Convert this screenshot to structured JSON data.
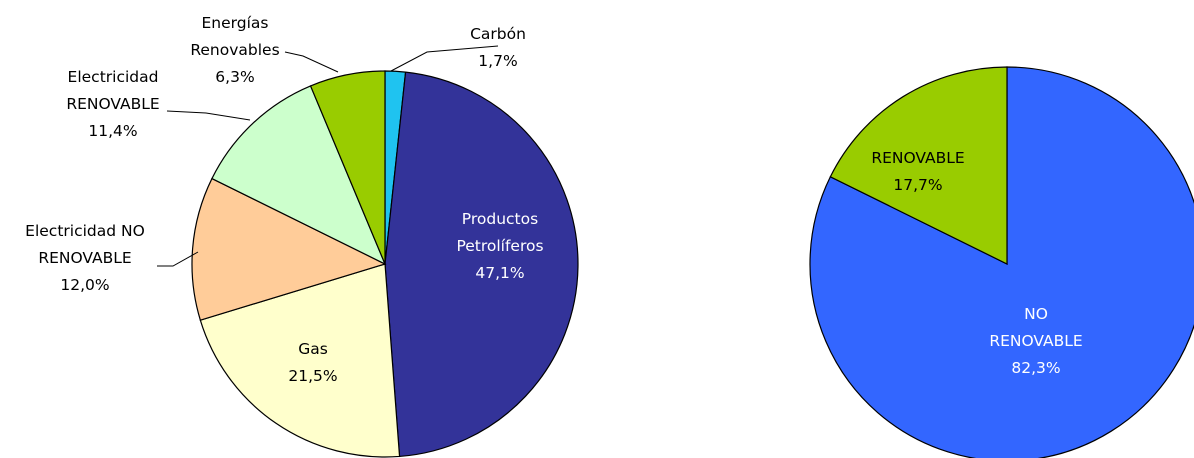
{
  "chart_data": [
    {
      "type": "pie",
      "slices": [
        {
          "name": "Carbón",
          "label_lines": [
            "Carbón",
            "1,7%"
          ],
          "value": 1.7,
          "color": "#1fc3f0"
        },
        {
          "name": "Productos Petrolíferos",
          "label_lines": [
            "Productos",
            "Petrolíferos",
            "47,1%"
          ],
          "value": 47.1,
          "color": "#333399"
        },
        {
          "name": "Gas",
          "label_lines": [
            "Gas",
            "21,5%"
          ],
          "value": 21.5,
          "color": "#ffffcc"
        },
        {
          "name": "Electricidad NO RENOVABLE",
          "label_lines": [
            "Electricidad NO",
            "RENOVABLE",
            "12,0%"
          ],
          "value": 12.0,
          "color": "#ffcc99"
        },
        {
          "name": "Electricidad RENOVABLE",
          "label_lines": [
            "Electricidad",
            "RENOVABLE",
            "11,4%"
          ],
          "value": 11.4,
          "color": "#ccffcc"
        },
        {
          "name": "Energías Renovables",
          "label_lines": [
            "Energías",
            "Renovables",
            "6,3%"
          ],
          "value": 6.3,
          "color": "#99cc00"
        }
      ]
    },
    {
      "type": "pie",
      "slices": [
        {
          "name": "NO RENOVABLE",
          "label_lines": [
            "NO",
            "RENOVABLE",
            "82,3%"
          ],
          "value": 82.3,
          "color": "#3366ff"
        },
        {
          "name": "RENOVABLE",
          "label_lines": [
            "RENOVABLE",
            "17,7%"
          ],
          "value": 17.7,
          "color": "#99cc00"
        }
      ]
    }
  ]
}
